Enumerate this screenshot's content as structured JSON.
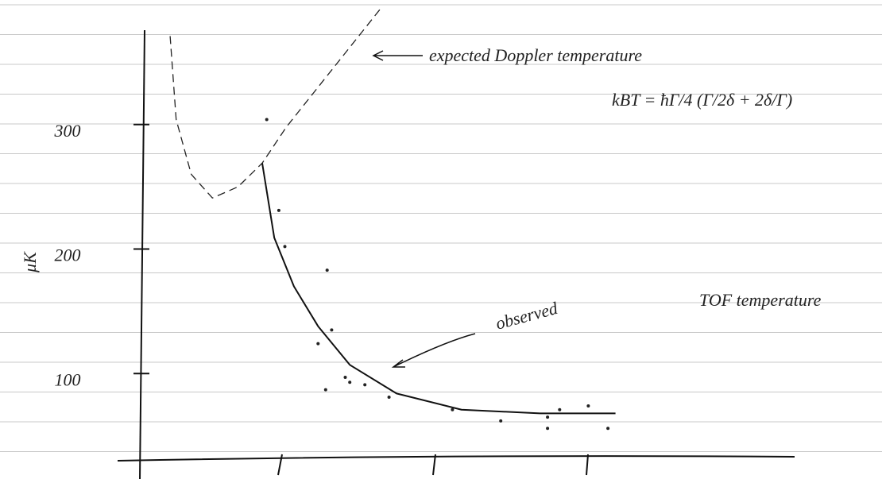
{
  "chart_data": {
    "type": "line",
    "y_label": "μK",
    "annotations": [
      "expected Doppler temperature",
      "kBT = ħΓ/4 (Γ/2δ + 2δ/Γ)",
      "observed",
      "TOF temperature"
    ],
    "xlim": [
      0,
      4.5
    ],
    "ylim": [
      30,
      400
    ],
    "yticks": [
      300,
      200,
      100
    ],
    "series": [
      {
        "color": "#222222",
        "mode": "dashed",
        "x": [
          0.19,
          0.23,
          0.33,
          0.47,
          0.64,
          0.8,
          0.96,
          1.17,
          1.38,
          1.59
        ],
        "values": [
          371,
          304,
          260,
          241,
          250,
          269,
          298,
          330,
          362,
          394
        ]
      },
      {
        "color": "#111111",
        "mode": "solid",
        "x": [
          0.8,
          0.88,
          1.01,
          1.17,
          1.38,
          1.69,
          2.12,
          2.64,
          3.14
        ],
        "values": [
          269,
          209,
          170,
          138,
          107,
          84,
          71,
          68,
          68
        ]
      },
      {
        "color": "#222222",
        "mode": "points",
        "x": [
          0.83,
          0.91,
          0.95,
          1.23,
          1.26,
          1.17,
          1.35,
          1.38,
          1.48,
          1.22,
          1.64,
          2.06,
          2.38,
          2.69,
          2.77,
          2.96,
          3.09,
          2.69
        ],
        "values": [
          304,
          231,
          202,
          183,
          135,
          124,
          97,
          93,
          91,
          87,
          81,
          71,
          62,
          65,
          71,
          74,
          56,
          56
        ]
      }
    ]
  }
}
